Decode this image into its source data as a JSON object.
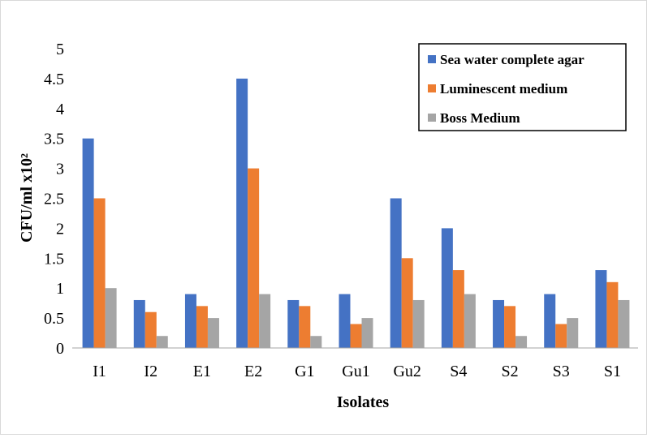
{
  "chart_data": {
    "type": "bar",
    "categories": [
      "I1",
      "I2",
      "E1",
      "E2",
      "G1",
      "Gu1",
      "Gu2",
      "S4",
      "S2",
      "S3",
      "S1"
    ],
    "series": [
      {
        "name": "Sea water complete agar",
        "color": "#4472C4",
        "values": [
          3.5,
          0.8,
          0.9,
          4.5,
          0.8,
          0.9,
          2.5,
          2.0,
          0.8,
          0.9,
          1.3
        ]
      },
      {
        "name": "Luminescent medium",
        "color": "#ED7D31",
        "values": [
          2.5,
          0.6,
          0.7,
          3.0,
          0.7,
          0.4,
          1.5,
          1.3,
          0.7,
          0.4,
          1.1
        ]
      },
      {
        "name": "Boss Medium",
        "color": "#A5A5A5",
        "values": [
          1.0,
          0.2,
          0.5,
          0.9,
          0.2,
          0.5,
          0.8,
          0.9,
          0.2,
          0.5,
          0.8
        ]
      }
    ],
    "xlabel": "Isolates",
    "ylabel": "CFU/ml x10²",
    "ylim": [
      0,
      5
    ],
    "yticks": [
      "0",
      "0.5",
      "1",
      "1.5",
      "2",
      "2.5",
      "3",
      "3.5",
      "4",
      "4.5",
      "5"
    ],
    "grid": false,
    "legend_position": "top-right"
  }
}
